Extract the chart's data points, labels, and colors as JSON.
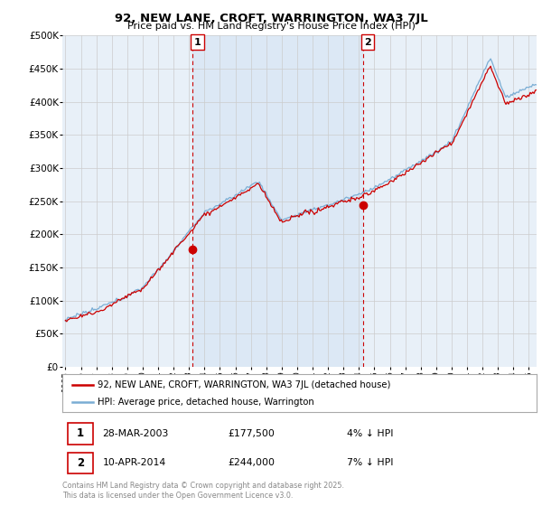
{
  "title": "92, NEW LANE, CROFT, WARRINGTON, WA3 7JL",
  "subtitle": "Price paid vs. HM Land Registry's House Price Index (HPI)",
  "ylabel_ticks": [
    "£0",
    "£50K",
    "£100K",
    "£150K",
    "£200K",
    "£250K",
    "£300K",
    "£350K",
    "£400K",
    "£450K",
    "£500K"
  ],
  "ylim": [
    0,
    500000
  ],
  "xlim_start": 1994.8,
  "xlim_end": 2025.5,
  "xticks": [
    1995,
    1996,
    1997,
    1998,
    1999,
    2000,
    2001,
    2002,
    2003,
    2004,
    2005,
    2006,
    2007,
    2008,
    2009,
    2010,
    2011,
    2012,
    2013,
    2014,
    2015,
    2016,
    2017,
    2018,
    2019,
    2020,
    2021,
    2022,
    2023,
    2024,
    2025
  ],
  "sale1_x": 2003.24,
  "sale1_y": 177500,
  "sale1_label": "1",
  "sale2_x": 2014.27,
  "sale2_y": 244000,
  "sale2_label": "2",
  "vline1_x": 2003.24,
  "vline2_x": 2014.27,
  "legend_line1": "92, NEW LANE, CROFT, WARRINGTON, WA3 7JL (detached house)",
  "legend_line2": "HPI: Average price, detached house, Warrington",
  "annotation1_num": "1",
  "annotation1_date": "28-MAR-2003",
  "annotation1_price": "£177,500",
  "annotation1_hpi": "4% ↓ HPI",
  "annotation2_num": "2",
  "annotation2_date": "10-APR-2014",
  "annotation2_price": "£244,000",
  "annotation2_hpi": "7% ↓ HPI",
  "copyright_text": "Contains HM Land Registry data © Crown copyright and database right 2025.\nThis data is licensed under the Open Government Licence v3.0.",
  "red_color": "#cc0000",
  "blue_color": "#7aadd4",
  "bg_color": "#e8f0f8",
  "shade_color": "#dce8f5",
  "plot_bg": "#ffffff",
  "grid_color": "#cccccc"
}
